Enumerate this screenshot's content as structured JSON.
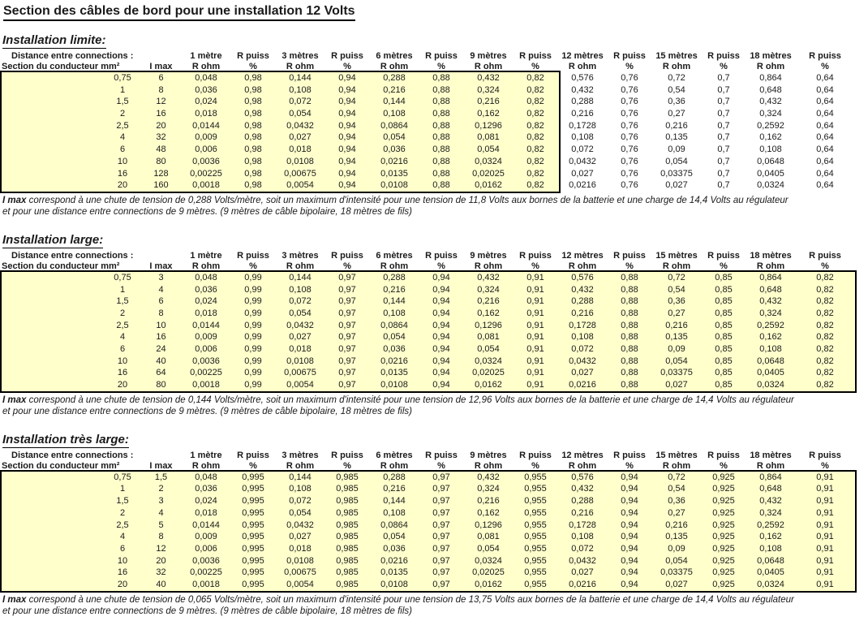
{
  "title": "Section des câbles de bord pour une installation 12 Volts",
  "header": {
    "row1_label": "Distance entre connections :",
    "row2_label": "Section du conducteur mm²",
    "imax_label": "I max",
    "rpuiss_label": "R puiss",
    "rohm_label": "R ohm",
    "pct_label": "%",
    "distances": [
      "1 mètre",
      "3 mètres",
      "6 mètres",
      "9 mètres",
      "12 mètres",
      "15 mètres",
      "18 mètres"
    ]
  },
  "sections": [
    "0,75",
    "1",
    "1,5",
    "2",
    "2,5",
    "4",
    "6",
    "10",
    "16",
    "20"
  ],
  "rohm": [
    [
      "0,048",
      "0,144",
      "0,288",
      "0,432",
      "0,576",
      "0,72",
      "0,864"
    ],
    [
      "0,036",
      "0,108",
      "0,216",
      "0,324",
      "0,432",
      "0,54",
      "0,648"
    ],
    [
      "0,024",
      "0,072",
      "0,144",
      "0,216",
      "0,288",
      "0,36",
      "0,432"
    ],
    [
      "0,018",
      "0,054",
      "0,108",
      "0,162",
      "0,216",
      "0,27",
      "0,324"
    ],
    [
      "0,0144",
      "0,0432",
      "0,0864",
      "0,1296",
      "0,1728",
      "0,216",
      "0,2592"
    ],
    [
      "0,009",
      "0,027",
      "0,054",
      "0,081",
      "0,108",
      "0,135",
      "0,162"
    ],
    [
      "0,006",
      "0,018",
      "0,036",
      "0,054",
      "0,072",
      "0,09",
      "0,108"
    ],
    [
      "0,0036",
      "0,0108",
      "0,0216",
      "0,0324",
      "0,0432",
      "0,054",
      "0,0648"
    ],
    [
      "0,00225",
      "0,00675",
      "0,0135",
      "0,02025",
      "0,027",
      "0,03375",
      "0,0405"
    ],
    [
      "0,0018",
      "0,0054",
      "0,0108",
      "0,0162",
      "0,0216",
      "0,027",
      "0,0324"
    ]
  ],
  "footnote_line2": "et pour une distance entre connections de 9 mètres. (9 mètres de câble bipolaire, 18 mètres de fils)",
  "footnote_bold": "I max",
  "colors": {
    "table_fill": "#FFFFCC",
    "border": "#000000"
  },
  "tables": [
    {
      "heading": "Installation limite:",
      "box": "partial",
      "imax": [
        "6",
        "8",
        "12",
        "16",
        "20",
        "32",
        "48",
        "80",
        "128",
        "160"
      ],
      "pct": [
        "0,98",
        "0,94",
        "0,88",
        "0,82",
        "0,76",
        "0,7",
        "0,64"
      ],
      "footnote_main": " correspond à une chute de tension de 0,288 Volts/mètre, soit un maximum d'intensité pour une tension de 11,8 Volts aux bornes de la batterie et une charge de 14,4 Volts au régulateur"
    },
    {
      "heading": "Installation large:",
      "box": "full",
      "imax": [
        "3",
        "4",
        "6",
        "8",
        "10",
        "16",
        "24",
        "40",
        "64",
        "80"
      ],
      "pct": [
        "0,99",
        "0,97",
        "0,94",
        "0,91",
        "0,88",
        "0,85",
        "0,82"
      ],
      "footnote_main": " correspond à une chute de tension de 0,144 Volts/mètre, soit un maximum d'intensité pour une tension de 12,96 Volts aux bornes de la batterie et une charge de 14,4 Volts au régulateur"
    },
    {
      "heading": "Installation très large:",
      "box": "full",
      "imax": [
        "1,5",
        "2",
        "3",
        "4",
        "5",
        "8",
        "12",
        "20",
        "32",
        "40"
      ],
      "pct": [
        "0,995",
        "0,985",
        "0,97",
        "0,955",
        "0,94",
        "0,925",
        "0,91"
      ],
      "footnote_main": " correspond à une chute de tension de 0,065 Volts/mètre, soit un maximum d'intensité pour une tension de 13,75 Volts aux bornes de la batterie et une charge de 14,4 Volts au régulateur"
    }
  ]
}
